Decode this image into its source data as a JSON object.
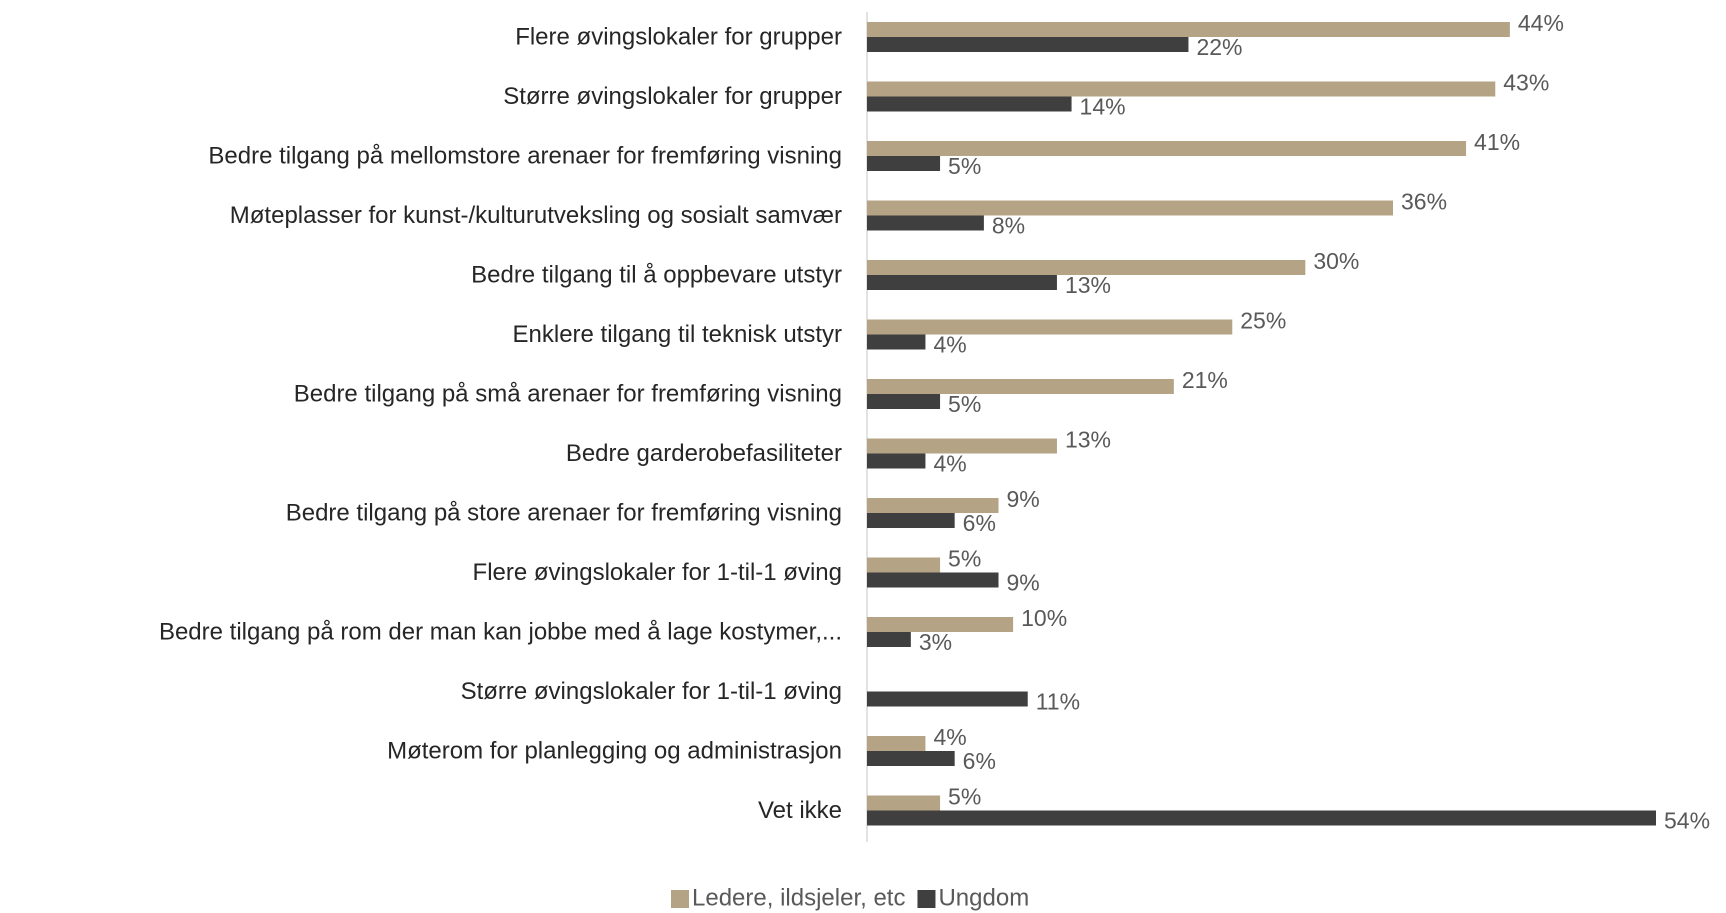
{
  "chart_data": {
    "type": "bar",
    "orientation": "horizontal",
    "categories": [
      "Flere øvingslokaler for grupper",
      "Større øvingslokaler for grupper",
      "Bedre tilgang på mellomstore arenaer for fremføring visning",
      "Møteplasser for kunst-/kulturutveksling og sosialt samvær",
      "Bedre tilgang til å oppbevare utstyr",
      "Enklere tilgang til teknisk utstyr",
      "Bedre tilgang på små arenaer for fremføring visning",
      "Bedre garderobefasiliteter",
      "Bedre tilgang på store arenaer for fremføring visning",
      "Flere øvingslokaler for 1-til-1 øving",
      "Bedre tilgang på rom der man kan jobbe med å lage kostymer,...",
      "Større øvingslokaler for 1-til-1 øving",
      "Møterom for planlegging og administrasjon",
      "Vet ikke"
    ],
    "series": [
      {
        "name": "Ledere, ildsjeler, etc",
        "color": "#b5a385",
        "values": [
          44,
          43,
          41,
          36,
          30,
          25,
          21,
          13,
          9,
          5,
          10,
          null,
          4,
          5
        ],
        "value_labels": [
          "44%",
          "43%",
          "41%",
          "36%",
          "30%",
          "25%",
          "21%",
          "13%",
          "9%",
          "5%",
          "10%",
          null,
          "4%",
          "5%"
        ]
      },
      {
        "name": "Ungdom",
        "color": "#3f3f3f",
        "values": [
          22,
          14,
          5,
          8,
          13,
          4,
          5,
          4,
          6,
          9,
          3,
          11,
          6,
          54
        ],
        "value_labels": [
          "22%",
          "14%",
          "5%",
          "8%",
          "13%",
          "4%",
          "5%",
          "4%",
          "6%",
          "9%",
          "3%",
          "11%",
          "6%",
          "54%"
        ]
      }
    ],
    "legend": "bottom"
  }
}
